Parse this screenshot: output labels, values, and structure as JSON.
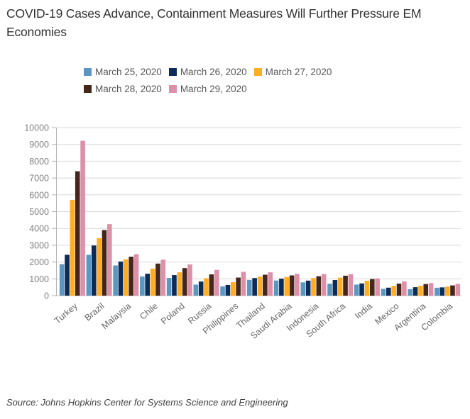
{
  "title": {
    "text": "COVID-19 Cases Advance, Containment Measures Will Further Pressure EM Economies"
  },
  "source": {
    "text": "Source: Johns Hopkins Center for Systems Science and Engineering"
  },
  "colors": {
    "title_text": "#333333",
    "legend_text": "#55565A",
    "y_axis_label": "#808080",
    "x_axis_label": "#666666",
    "gridline": "#D9D9D9",
    "axis_line": "#B3B3B3",
    "baseline": "#C0C0C0",
    "source_text": "#404040"
  },
  "chart_data": {
    "type": "bar",
    "title": "COVID-19 Cases Advance, Containment Measures Will Further Pressure EM Economies",
    "xlabel": "",
    "ylabel": "",
    "ylim": [
      0,
      10000
    ],
    "ytick_step": 1000,
    "grid": true,
    "legend_position": "top",
    "categories": [
      "Turkey",
      "Brazil",
      "Malaysia",
      "Chile",
      "Poland",
      "Russia",
      "Philippines",
      "Thailand",
      "Saudi Arabia",
      "Indonesia",
      "South Africa",
      "India",
      "Mexico",
      "Argentina",
      "Colombia"
    ],
    "series": [
      {
        "name": "March 25, 2020",
        "color": "#5B97BE",
        "values": [
          1872,
          2430,
          1796,
          1142,
          1051,
          658,
          552,
          934,
          900,
          790,
          709,
          657,
          405,
          387,
          470
        ]
      },
      {
        "name": "March 26, 2020",
        "color": "#0B2B5B",
        "values": [
          2433,
          2985,
          2031,
          1306,
          1221,
          840,
          636,
          1045,
          1012,
          893,
          927,
          727,
          475,
          502,
          491
        ]
      },
      {
        "name": "March 27, 2020",
        "color": "#FFAE24",
        "values": [
          5698,
          3417,
          2161,
          1610,
          1389,
          1036,
          803,
          1136,
          1104,
          1046,
          1070,
          887,
          585,
          589,
          539
        ]
      },
      {
        "name": "March 28, 2020",
        "color": "#45261A",
        "values": [
          7402,
          3904,
          2320,
          1909,
          1638,
          1264,
          1075,
          1245,
          1203,
          1155,
          1187,
          987,
          717,
          690,
          608
        ]
      },
      {
        "name": "March 29, 2020",
        "color": "#DE90A9",
        "values": [
          9217,
          4256,
          2470,
          2139,
          1862,
          1534,
          1418,
          1388,
          1299,
          1285,
          1280,
          1024,
          848,
          745,
          702
        ]
      }
    ]
  }
}
